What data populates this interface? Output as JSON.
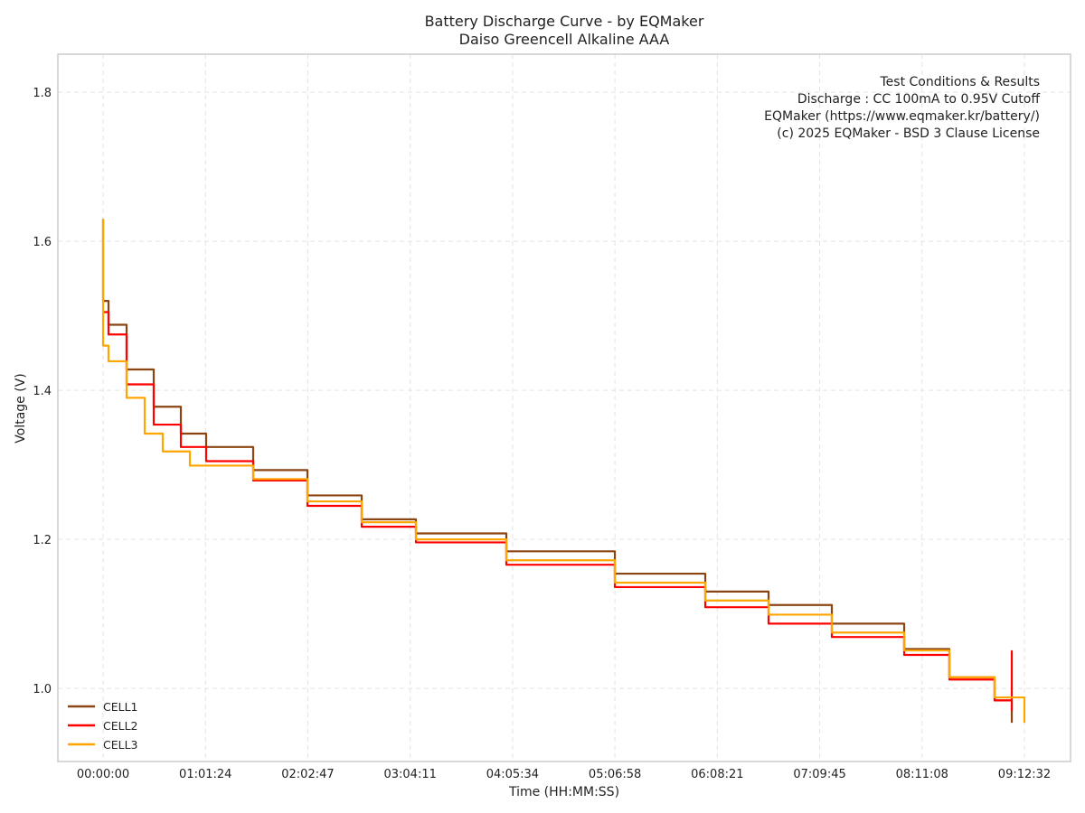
{
  "chart_data": {
    "type": "line",
    "title": "Battery Discharge Curve - by EQMaker",
    "subtitle": "Daiso Greencell Alkaline AAA",
    "xlabel": "Time (HH:MM:SS)",
    "ylabel": "Voltage (V)",
    "xlim": [
      -1627,
      34811
    ],
    "ylim": [
      0.902,
      1.851
    ],
    "grid": true,
    "x_ticks": [
      0,
      3684,
      7367,
      11051,
      14734,
      18418,
      22101,
      25785,
      29468,
      33152
    ],
    "x_tick_labels": [
      "00:00:00",
      "01:01:24",
      "02:02:47",
      "03:04:11",
      "04:05:34",
      "05:06:58",
      "06:08:21",
      "07:09:45",
      "08:11:08",
      "09:12:32"
    ],
    "y_ticks": [
      1.0,
      1.2,
      1.4,
      1.6,
      1.8
    ],
    "y_tick_labels": [
      "1.0",
      "1.2",
      "1.4",
      "1.6",
      "1.8"
    ],
    "legend_position": "bottom-left",
    "annotation": [
      "Test Conditions & Results",
      "Discharge : CC 100mA to 0.95V Cutoff",
      "EQMaker (https://www.eqmaker.kr/battery/)",
      "(c) 2025 EQMaker - BSD 3 Clause License"
    ],
    "series": [
      {
        "name": "CELL1",
        "color": "#8B4513",
        "x_unit": "seconds",
        "points": [
          [
            0,
            1.63
          ],
          [
            0,
            1.52
          ],
          [
            195,
            1.488
          ],
          [
            846,
            1.428
          ],
          [
            1822,
            1.378
          ],
          [
            2798,
            1.342
          ],
          [
            3709,
            1.324
          ],
          [
            5401,
            1.293
          ],
          [
            7353,
            1.259
          ],
          [
            9305,
            1.227
          ],
          [
            11257,
            1.208
          ],
          [
            14510,
            1.184
          ],
          [
            18414,
            1.154
          ],
          [
            21668,
            1.13
          ],
          [
            23945,
            1.112
          ],
          [
            26222,
            1.087
          ],
          [
            28825,
            1.053
          ],
          [
            30451,
            1.015
          ],
          [
            32078,
            0.984
          ],
          [
            32697,
            0.954
          ]
        ]
      },
      {
        "name": "CELL2",
        "color": "#FF0000",
        "x_unit": "seconds",
        "points": [
          [
            0,
            1.505
          ],
          [
            195,
            1.475
          ],
          [
            846,
            1.408
          ],
          [
            1822,
            1.354
          ],
          [
            2798,
            1.324
          ],
          [
            3709,
            1.305
          ],
          [
            5401,
            1.279
          ],
          [
            7353,
            1.245
          ],
          [
            9305,
            1.217
          ],
          [
            11257,
            1.196
          ],
          [
            14510,
            1.166
          ],
          [
            18414,
            1.136
          ],
          [
            21668,
            1.109
          ],
          [
            23945,
            1.087
          ],
          [
            26222,
            1.069
          ],
          [
            28825,
            1.045
          ],
          [
            30451,
            1.012
          ],
          [
            32078,
            0.984
          ],
          [
            32697,
            0.972
          ],
          [
            32697,
            1.05
          ],
          [
            32697,
            0.97
          ]
        ]
      },
      {
        "name": "CELL3",
        "color": "#FFA500",
        "x_unit": "seconds",
        "points": [
          [
            0,
            1.63
          ],
          [
            0,
            1.46
          ],
          [
            195,
            1.439
          ],
          [
            846,
            1.39
          ],
          [
            1497,
            1.342
          ],
          [
            2147,
            1.318
          ],
          [
            3123,
            1.299
          ],
          [
            4099,
            1.299
          ],
          [
            5401,
            1.281
          ],
          [
            7353,
            1.251
          ],
          [
            9305,
            1.223
          ],
          [
            11257,
            1.2
          ],
          [
            14510,
            1.172
          ],
          [
            18414,
            1.142
          ],
          [
            21668,
            1.118
          ],
          [
            23945,
            1.099
          ],
          [
            26222,
            1.075
          ],
          [
            28825,
            1.051
          ],
          [
            30451,
            1.015
          ],
          [
            32078,
            0.988
          ],
          [
            33152,
            0.966
          ],
          [
            33152,
            0.954
          ]
        ]
      }
    ]
  }
}
